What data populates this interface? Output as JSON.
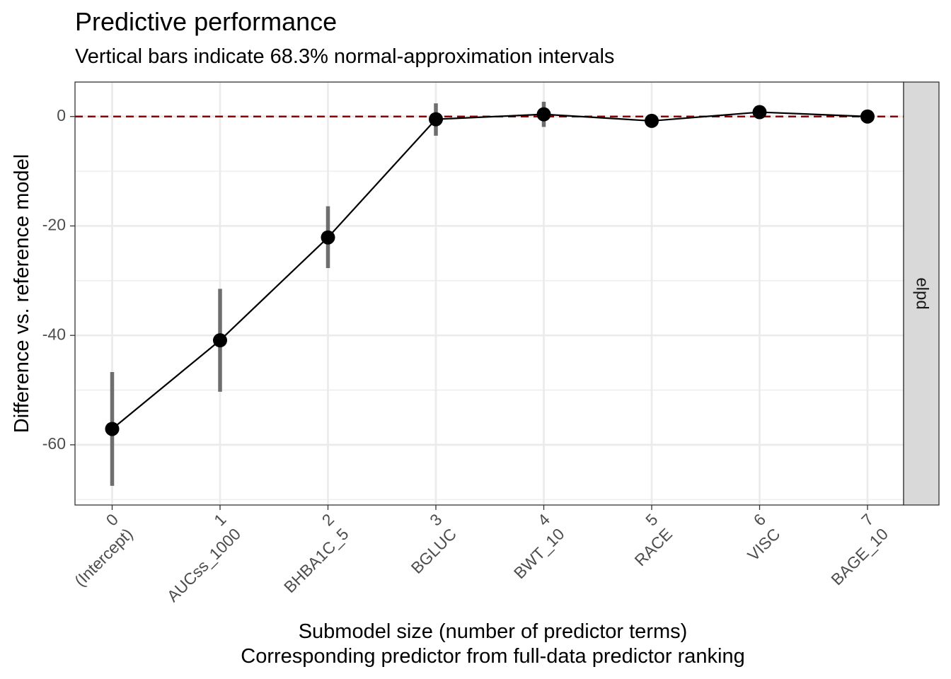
{
  "chart_data": {
    "type": "line",
    "title": "Predictive performance",
    "subtitle": "Vertical bars indicate 68.3% normal-approximation intervals",
    "xlabel": "Submodel size (number of predictor terms)",
    "xlabel2": "Corresponding predictor from full-data predictor ranking",
    "ylabel": "Difference vs. reference model",
    "facet_label": "elpd",
    "ylim": [
      -71,
      6.3
    ],
    "yticks": [
      0,
      -20,
      -40,
      -60
    ],
    "reference_line": 0,
    "grid": true,
    "x": [
      0,
      1,
      2,
      3,
      4,
      5,
      6,
      7
    ],
    "tick_sizes": [
      "0",
      "1",
      "2",
      "3",
      "4",
      "5",
      "6",
      "7"
    ],
    "tick_predictors": [
      "(Intercept)",
      "AUCss_1000",
      "BHBA1C_5",
      "BGLUC",
      "BWT_10",
      "RACE",
      "VISC",
      "BAGE_10"
    ],
    "y": [
      -57.1,
      -40.9,
      -22.1,
      -0.5,
      0.4,
      -0.8,
      0.8,
      0.0
    ],
    "lower": [
      -67.5,
      -50.3,
      -27.7,
      -3.5,
      -1.9,
      null,
      null,
      null
    ],
    "upper": [
      -46.7,
      -31.5,
      -16.4,
      2.4,
      2.7,
      null,
      null,
      null
    ],
    "colors": {
      "line": "#000000",
      "points": "#000000",
      "intervals": "#6e6e6e",
      "reference": "#8b0000",
      "grid": "#ebebeb",
      "strip": "#d9d9d9"
    }
  }
}
